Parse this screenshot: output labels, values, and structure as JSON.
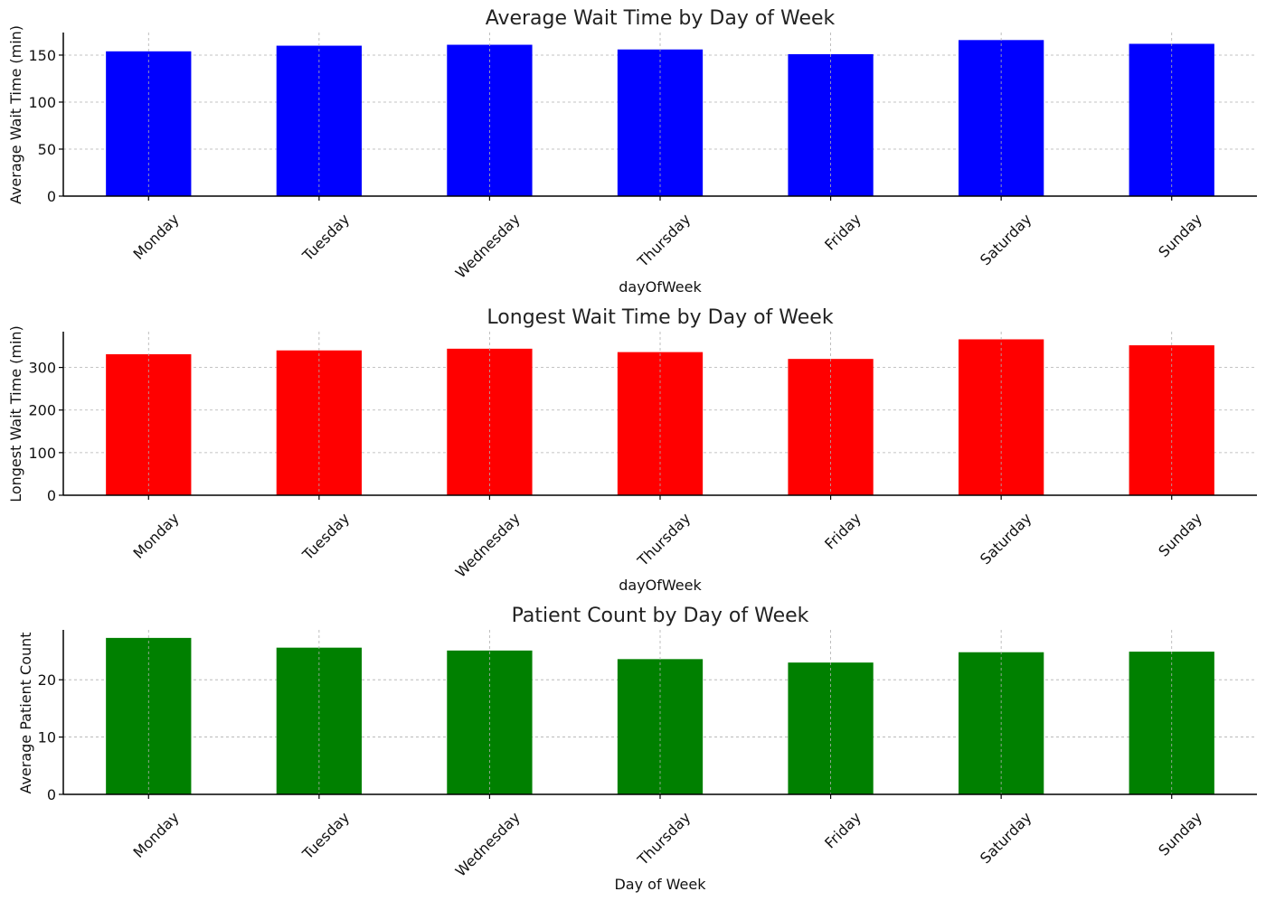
{
  "chart_data": [
    {
      "type": "bar",
      "title": "Average Wait Time by Day of Week",
      "xlabel": "dayOfWeek",
      "ylabel": "Average Wait Time (min)",
      "categories": [
        "Monday",
        "Tuesday",
        "Wednesday",
        "Thursday",
        "Friday",
        "Saturday",
        "Sunday"
      ],
      "values": [
        154,
        160,
        161,
        156,
        151,
        166,
        162
      ],
      "ylim": [
        0,
        174
      ],
      "yticks": [
        0,
        50,
        100,
        150
      ],
      "color": "#0000ff",
      "grid": true
    },
    {
      "type": "bar",
      "title": "Longest Wait Time by Day of Week",
      "xlabel": "dayOfWeek",
      "ylabel": "Longest Wait Time (min)",
      "categories": [
        "Monday",
        "Tuesday",
        "Wednesday",
        "Thursday",
        "Friday",
        "Saturday",
        "Sunday"
      ],
      "values": [
        331,
        340,
        344,
        336,
        320,
        366,
        352
      ],
      "ylim": [
        0,
        384
      ],
      "yticks": [
        0,
        100,
        200,
        300
      ],
      "color": "#ff0000",
      "grid": true
    },
    {
      "type": "bar",
      "title": "Patient Count by Day of Week",
      "xlabel": "Day of Week",
      "ylabel": "Average Patient Count",
      "categories": [
        "Monday",
        "Tuesday",
        "Wednesday",
        "Thursday",
        "Friday",
        "Saturday",
        "Sunday"
      ],
      "values": [
        27.3,
        25.6,
        25.1,
        23.6,
        23.0,
        24.8,
        24.9
      ],
      "ylim": [
        0,
        28.7
      ],
      "yticks": [
        0,
        10,
        20
      ],
      "color": "#008000",
      "grid": true
    }
  ]
}
